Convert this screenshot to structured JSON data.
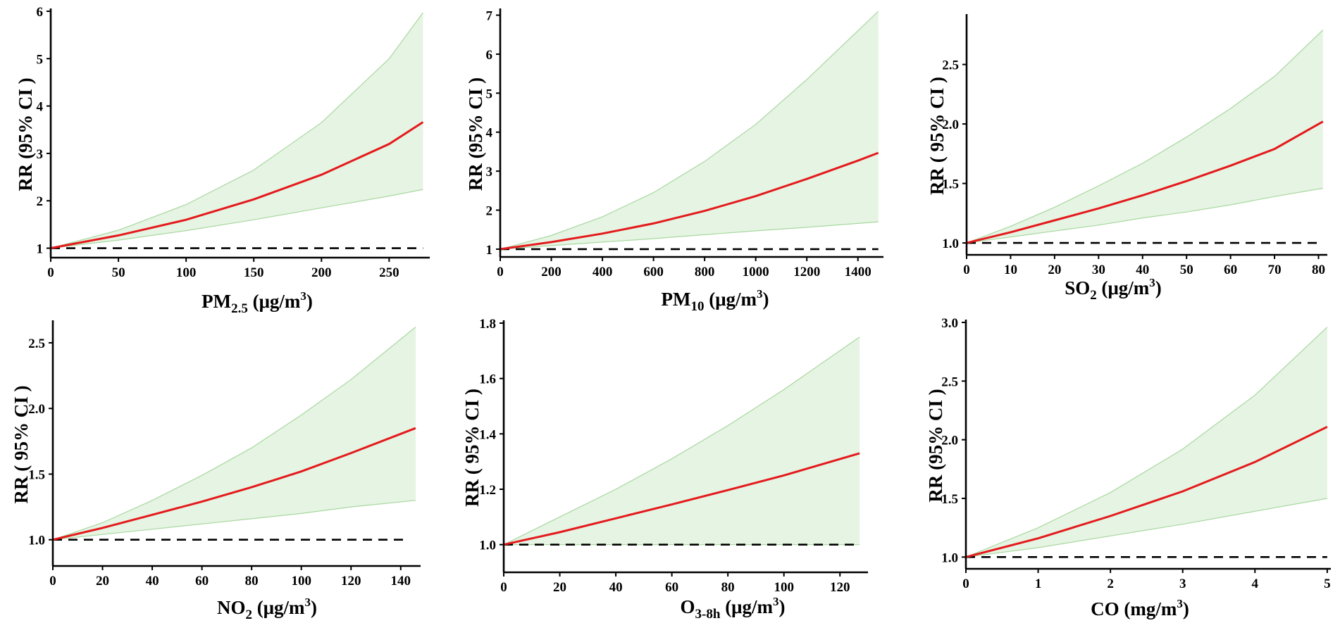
{
  "chart_data": [
    {
      "type": "line",
      "ylabel": "RR (95% CI )",
      "xlabel": "PM2.5 (μg/m3)",
      "xlabel_parts": {
        "base": "PM",
        "sub": "2.5",
        "unit_pre": "(μg/m",
        "sup": "3",
        "unit_post": ")"
      },
      "xlim": [
        0,
        280
      ],
      "ylim": [
        0.8,
        6
      ],
      "xticks": [
        0,
        50,
        100,
        150,
        200,
        250
      ],
      "yticks": [
        1,
        2,
        3,
        4,
        5,
        6
      ],
      "ytick_decimals": 0,
      "reference_line": {
        "y": 1,
        "x_range": [
          0,
          275
        ],
        "style": "dashed"
      },
      "series": [
        {
          "name": "RR",
          "color": "#e41a1c",
          "x": [
            0,
            50,
            100,
            150,
            200,
            250,
            275
          ],
          "y": [
            1.0,
            1.27,
            1.6,
            2.03,
            2.55,
            3.2,
            3.66
          ]
        },
        {
          "name": "95% CI upper",
          "color": "#a8d8a0",
          "x": [
            0,
            50,
            100,
            150,
            200,
            250,
            275
          ],
          "y": [
            1.0,
            1.38,
            1.92,
            2.65,
            3.65,
            5.0,
            5.97
          ]
        },
        {
          "name": "95% CI lower",
          "color": "#a8d8a0",
          "x": [
            0,
            50,
            100,
            150,
            200,
            250,
            275
          ],
          "y": [
            1.0,
            1.17,
            1.37,
            1.6,
            1.85,
            2.1,
            2.24
          ]
        }
      ]
    },
    {
      "type": "line",
      "ylabel": "RR (95% CI )",
      "xlabel": "PM10 (μg/m3)",
      "xlabel_parts": {
        "base": "PM",
        "sub": "10",
        "unit_pre": "(μg/m",
        "sup": "3",
        "unit_post": ")"
      },
      "xlim": [
        0,
        1500
      ],
      "ylim": [
        0.8,
        7.1
      ],
      "xticks": [
        0,
        200,
        400,
        600,
        800,
        1000,
        1200,
        1400
      ],
      "yticks": [
        1,
        2,
        3,
        4,
        5,
        6,
        7
      ],
      "ytick_decimals": 0,
      "reference_line": {
        "y": 1,
        "x_range": [
          0,
          1480
        ],
        "style": "dashed"
      },
      "series": [
        {
          "name": "RR",
          "color": "#e41a1c",
          "x": [
            0,
            200,
            400,
            600,
            800,
            1000,
            1200,
            1400,
            1480
          ],
          "y": [
            1.0,
            1.18,
            1.4,
            1.66,
            1.98,
            2.36,
            2.8,
            3.27,
            3.47
          ]
        },
        {
          "name": "95% CI upper",
          "color": "#a8d8a0",
          "x": [
            0,
            200,
            400,
            600,
            800,
            1000,
            1200,
            1400,
            1480
          ],
          "y": [
            1.0,
            1.35,
            1.83,
            2.45,
            3.25,
            4.2,
            5.35,
            6.6,
            7.1
          ]
        },
        {
          "name": "95% CI lower",
          "color": "#a8d8a0",
          "x": [
            0,
            200,
            400,
            600,
            800,
            1000,
            1200,
            1400,
            1480
          ],
          "y": [
            1.0,
            1.09,
            1.18,
            1.27,
            1.37,
            1.47,
            1.56,
            1.66,
            1.7
          ]
        }
      ]
    },
    {
      "type": "line",
      "ylabel": "RR ( 95% CI )",
      "xlabel": "SO2 (μg/m3)",
      "xlabel_parts": {
        "base": "SO",
        "sub": "2",
        "unit_pre": "(μg/m",
        "sup": "3",
        "unit_post": ")"
      },
      "xlim": [
        0,
        82
      ],
      "ylim": [
        0.9,
        2.9
      ],
      "xticks": [
        0,
        10,
        20,
        30,
        40,
        50,
        60,
        70,
        80
      ],
      "yticks": [
        1.0,
        1.5,
        2.0,
        2.5
      ],
      "ytick_decimals": 1,
      "reference_line": {
        "y": 1,
        "x_range": [
          0,
          80
        ],
        "style": "dashed"
      },
      "series": [
        {
          "name": "RR",
          "color": "#e41a1c",
          "x": [
            0,
            10,
            20,
            30,
            40,
            50,
            60,
            70,
            81
          ],
          "y": [
            1.0,
            1.09,
            1.19,
            1.29,
            1.4,
            1.52,
            1.65,
            1.79,
            2.02
          ]
        },
        {
          "name": "95% CI upper",
          "color": "#a8d8a0",
          "x": [
            0,
            10,
            20,
            30,
            40,
            50,
            60,
            70,
            81
          ],
          "y": [
            1.0,
            1.14,
            1.3,
            1.48,
            1.67,
            1.89,
            2.13,
            2.4,
            2.79
          ]
        },
        {
          "name": "95% CI lower",
          "color": "#a8d8a0",
          "x": [
            0,
            10,
            20,
            30,
            40,
            50,
            60,
            70,
            81
          ],
          "y": [
            1.0,
            1.05,
            1.1,
            1.15,
            1.21,
            1.26,
            1.32,
            1.39,
            1.46
          ]
        }
      ]
    },
    {
      "type": "line",
      "ylabel": "RR ( 95% CI )",
      "xlabel": "NO2 (μg/m3)",
      "xlabel_parts": {
        "base": "NO",
        "sub": "2",
        "unit_pre": "(μg/m",
        "sup": "3",
        "unit_post": ")"
      },
      "xlim": [
        0,
        148
      ],
      "ylim": [
        0.8,
        2.65
      ],
      "xticks": [
        0,
        20,
        40,
        60,
        80,
        100,
        120,
        140
      ],
      "yticks": [
        1.0,
        1.5,
        2.0,
        2.5
      ],
      "ytick_decimals": 1,
      "reference_line": {
        "y": 1,
        "x_range": [
          0,
          142
        ],
        "style": "dashed"
      },
      "series": [
        {
          "name": "RR",
          "color": "#e41a1c",
          "x": [
            0,
            20,
            40,
            60,
            80,
            100,
            120,
            146
          ],
          "y": [
            1.0,
            1.09,
            1.19,
            1.29,
            1.4,
            1.52,
            1.66,
            1.85
          ]
        },
        {
          "name": "95% CI upper",
          "color": "#a8d8a0",
          "x": [
            0,
            20,
            40,
            60,
            80,
            100,
            120,
            146
          ],
          "y": [
            1.0,
            1.13,
            1.3,
            1.49,
            1.7,
            1.95,
            2.22,
            2.62
          ]
        },
        {
          "name": "95% CI lower",
          "color": "#a8d8a0",
          "x": [
            0,
            20,
            40,
            60,
            80,
            100,
            120,
            146
          ],
          "y": [
            1.0,
            1.04,
            1.08,
            1.12,
            1.16,
            1.2,
            1.25,
            1.3
          ]
        }
      ]
    },
    {
      "type": "line",
      "ylabel": "RR ( 95% CI )",
      "xlabel": "O3-8h (μg/m3)",
      "xlabel_parts": {
        "base": "O",
        "sub": "3-8h",
        "unit_pre": "(μg/m",
        "sup": "3",
        "unit_post": ")"
      },
      "xlim": [
        0,
        130
      ],
      "ylim": [
        0.9,
        1.8
      ],
      "xticks": [
        0,
        20,
        40,
        60,
        80,
        100,
        120
      ],
      "yticks": [
        1.0,
        1.2,
        1.4,
        1.6,
        1.8
      ],
      "ytick_decimals": 1,
      "reference_line": {
        "y": 1,
        "x_range": [
          0,
          126
        ],
        "style": "dashed"
      },
      "series": [
        {
          "name": "RR",
          "color": "#e41a1c",
          "x": [
            0,
            20,
            40,
            60,
            80,
            100,
            127
          ],
          "y": [
            1.0,
            1.045,
            1.095,
            1.145,
            1.197,
            1.25,
            1.33
          ]
        },
        {
          "name": "95% CI upper",
          "color": "#a8d8a0",
          "x": [
            0,
            20,
            40,
            60,
            80,
            100,
            127
          ],
          "y": [
            1.0,
            1.1,
            1.2,
            1.31,
            1.43,
            1.56,
            1.75
          ]
        },
        {
          "name": "95% CI lower",
          "color": "#a8d8a0",
          "x": [
            0,
            20,
            40,
            60,
            80,
            100,
            127
          ],
          "y": [
            1.0,
            1.0,
            1.0,
            1.0,
            1.0,
            1.0,
            1.0
          ]
        }
      ]
    },
    {
      "type": "line",
      "ylabel": "RR (95% CI )",
      "xlabel": "CO (mg/m3)",
      "xlabel_parts": {
        "base": "CO",
        "sub": "",
        "unit_pre": "(mg/m",
        "sup": "3",
        "unit_post": ")"
      },
      "xlim": [
        0,
        5.05
      ],
      "ylim": [
        0.9,
        3.0
      ],
      "xticks": [
        0,
        1,
        2,
        3,
        4,
        5
      ],
      "yticks": [
        1.0,
        1.5,
        2.0,
        2.5,
        3.0
      ],
      "ytick_decimals": 1,
      "reference_line": {
        "y": 1,
        "x_range": [
          0,
          5
        ],
        "style": "dashed"
      },
      "series": [
        {
          "name": "RR",
          "color": "#e41a1c",
          "x": [
            0,
            1,
            2,
            3,
            4,
            5
          ],
          "y": [
            1.0,
            1.16,
            1.35,
            1.56,
            1.81,
            2.11
          ]
        },
        {
          "name": "95% CI upper",
          "color": "#a8d8a0",
          "x": [
            0,
            1,
            2,
            3,
            4,
            5
          ],
          "y": [
            1.0,
            1.25,
            1.55,
            1.92,
            2.38,
            2.96
          ]
        },
        {
          "name": "95% CI lower",
          "color": "#a8d8a0",
          "x": [
            0,
            1,
            2,
            3,
            4,
            5
          ],
          "y": [
            1.0,
            1.08,
            1.18,
            1.28,
            1.39,
            1.5
          ]
        }
      ]
    }
  ]
}
